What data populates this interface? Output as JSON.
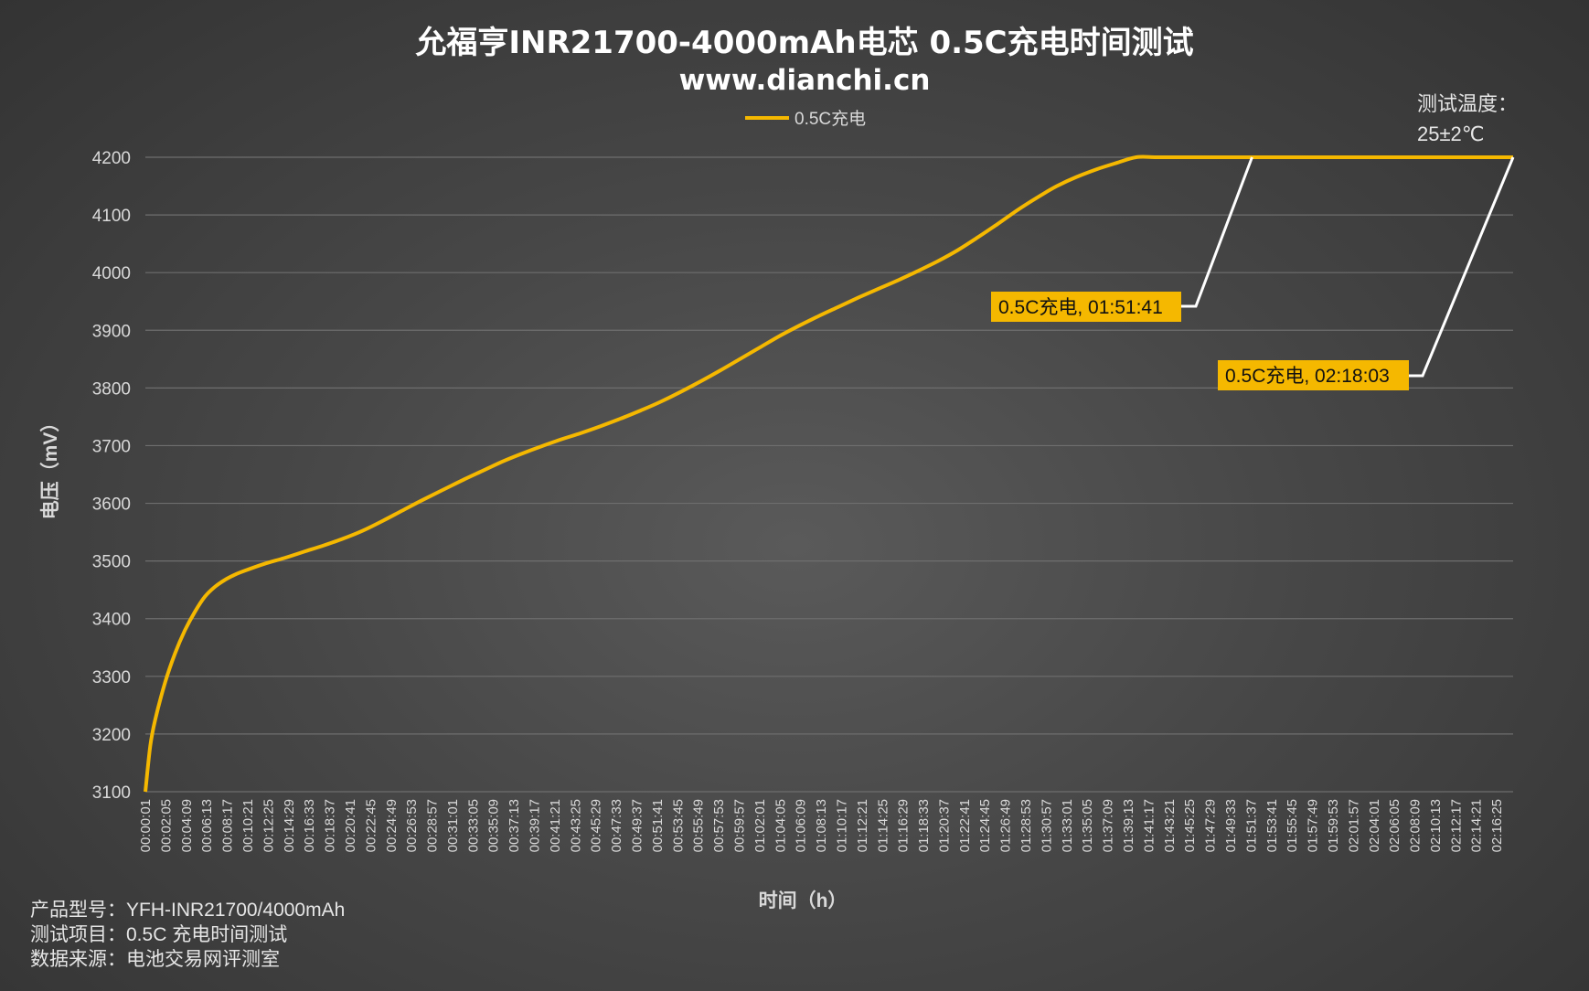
{
  "title": "允福亨INR21700-4000mAh电芯 0.5C充电时间测试",
  "subtitle": "www.dianchi.cn",
  "temperature": {
    "line1": "测试温度：",
    "line2": "25±2℃"
  },
  "footer": {
    "line1": "产品型号：YFH-INR21700/4000mAh",
    "line2": "测试项目：0.5C 充电时间测试",
    "line3": "数据来源：电池交易网评测室"
  },
  "colors": {
    "series": "#f5b800",
    "annotation_bg": "#f5b800",
    "grid": "#6e6e6e",
    "leader": "#ffffff"
  },
  "chart_data": {
    "type": "line",
    "title": "允福亨INR21700-4000mAh电芯 0.5C充电时间测试",
    "xlabel": "时间（h）",
    "ylabel": "电压（mV）",
    "ylim": [
      3100,
      4200
    ],
    "yticks": [
      3100,
      3200,
      3300,
      3400,
      3500,
      3600,
      3700,
      3800,
      3900,
      4000,
      4100,
      4200
    ],
    "grid": true,
    "legend": "top-center",
    "x_tick_labels": [
      "00:00:01",
      "00:02:05",
      "00:04:09",
      "00:06:13",
      "00:08:17",
      "00:10:21",
      "00:12:25",
      "00:14:29",
      "00:16:33",
      "00:18:37",
      "00:20:41",
      "00:22:45",
      "00:24:49",
      "00:26:53",
      "00:28:57",
      "00:31:01",
      "00:33:05",
      "00:35:09",
      "00:37:13",
      "00:39:17",
      "00:41:21",
      "00:43:25",
      "00:45:29",
      "00:47:33",
      "00:49:37",
      "00:51:41",
      "00:53:45",
      "00:55:49",
      "00:57:53",
      "00:59:57",
      "01:02:01",
      "01:04:05",
      "01:06:09",
      "01:08:13",
      "01:10:17",
      "01:12:21",
      "01:14:25",
      "01:16:29",
      "01:18:33",
      "01:20:37",
      "01:22:41",
      "01:24:45",
      "01:26:49",
      "01:28:53",
      "01:30:57",
      "01:33:01",
      "01:35:05",
      "01:37:09",
      "01:39:13",
      "01:41:17",
      "01:43:21",
      "01:45:25",
      "01:47:29",
      "01:49:33",
      "01:51:37",
      "01:53:41",
      "01:55:45",
      "01:57:49",
      "01:59:53",
      "02:01:57",
      "02:04:01",
      "02:06:05",
      "02:08:09",
      "02:10:13",
      "02:12:17",
      "02:14:21",
      "02:16:25"
    ],
    "series": [
      {
        "name": "0.5C充电",
        "x_minutes": [
          0,
          0.5,
          1,
          2,
          3,
          4,
          5,
          6,
          7,
          8,
          9,
          10,
          12,
          14,
          16,
          18,
          20,
          22,
          24,
          26,
          28,
          30,
          32,
          34,
          36,
          38,
          40,
          42,
          44,
          46,
          48,
          50,
          52,
          54,
          56,
          58,
          60,
          62,
          64,
          66,
          68,
          70,
          72,
          74,
          76,
          78,
          80,
          82,
          84,
          86,
          88,
          90,
          92,
          94,
          96,
          98,
          100,
          102,
          104,
          106,
          108,
          110,
          111.7,
          120,
          130,
          138.05
        ],
        "values": [
          3100,
          3180,
          3225,
          3290,
          3340,
          3380,
          3412,
          3438,
          3455,
          3467,
          3476,
          3483,
          3495,
          3505,
          3516,
          3527,
          3539,
          3553,
          3570,
          3588,
          3606,
          3623,
          3640,
          3656,
          3672,
          3686,
          3699,
          3711,
          3722,
          3734,
          3747,
          3761,
          3776,
          3793,
          3811,
          3830,
          3850,
          3870,
          3890,
          3908,
          3925,
          3941,
          3957,
          3972,
          3987,
          4003,
          4020,
          4039,
          4061,
          4084,
          4108,
          4130,
          4150,
          4166,
          4179,
          4190,
          4200,
          4200,
          4200,
          4200,
          4200,
          4200,
          4200,
          4200,
          4200,
          4200
        ]
      }
    ],
    "annotations": [
      {
        "label": "0.5C充电, 01:51:41",
        "x_minutes": 111.7,
        "y": 4200
      },
      {
        "label": "0.5C充电, 02:18:03",
        "x_minutes": 138.05,
        "y": 4200
      }
    ]
  }
}
